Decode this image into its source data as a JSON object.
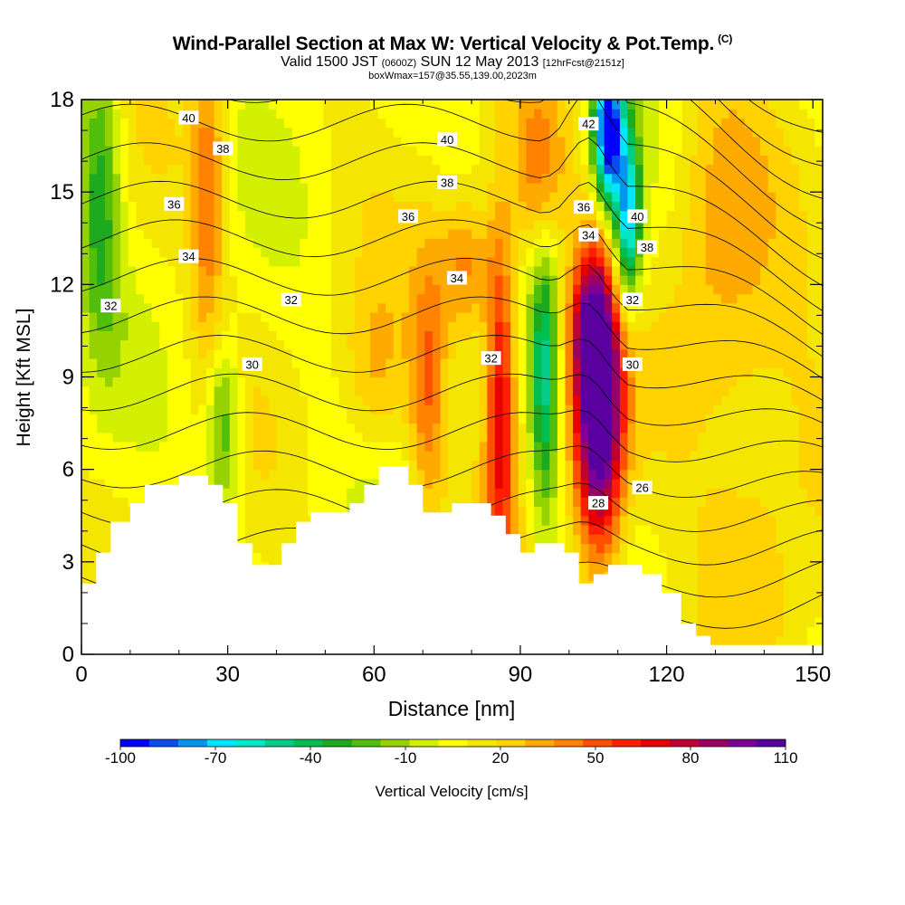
{
  "header": {
    "title": "Wind-Parallel Section at Max W: Vertical Velocity & Pot.Temp.",
    "copyright": "(C)",
    "valid_prefix": "Valid 1500 JST",
    "valid_utc": "(0600Z)",
    "valid_date": "SUN 12 May 2013",
    "forecast": "[12hrFcst@2151z]",
    "box": "boxWmax=157@35.55,139.00,2023m"
  },
  "chart_data": {
    "type": "heatmap",
    "xlabel": "Distance [nm]",
    "ylabel": "Height [Kft MSL]",
    "xlim": [
      0,
      152
    ],
    "ylim": [
      0,
      18
    ],
    "x_ticks": [
      0,
      30,
      60,
      90,
      120,
      150
    ],
    "y_ticks": [
      0,
      3,
      6,
      9,
      12,
      15,
      18
    ],
    "colorbar": {
      "label": "Vertical Velocity [cm/s]",
      "tick_labels": [
        -100,
        -70,
        -40,
        -10,
        20,
        50,
        80,
        110
      ],
      "colors": [
        "#0000ff",
        "#0a4cf0",
        "#0096f0",
        "#00e6ff",
        "#00e6c8",
        "#00cd8c",
        "#00be50",
        "#1eaa1e",
        "#50be0a",
        "#96d200",
        "#d2f000",
        "#ffff00",
        "#f5e600",
        "#ffd200",
        "#ffaa00",
        "#ff8200",
        "#ff5000",
        "#ff1e00",
        "#e60000",
        "#be0032",
        "#9b0064",
        "#7d0096",
        "#5a00a0"
      ]
    },
    "theta_contour_labels": [
      {
        "value": 40,
        "x": 22,
        "y": 17.4
      },
      {
        "value": 38,
        "x": 29,
        "y": 16.4
      },
      {
        "value": 36,
        "x": 19,
        "y": 14.6
      },
      {
        "value": 34,
        "x": 22,
        "y": 12.9
      },
      {
        "value": 32,
        "x": 6,
        "y": 11.3
      },
      {
        "value": 32,
        "x": 43,
        "y": 11.5
      },
      {
        "value": 30,
        "x": 35,
        "y": 9.4
      },
      {
        "value": 40,
        "x": 75,
        "y": 16.7
      },
      {
        "value": 38,
        "x": 75,
        "y": 15.3
      },
      {
        "value": 36,
        "x": 67,
        "y": 14.2
      },
      {
        "value": 34,
        "x": 77,
        "y": 12.2
      },
      {
        "value": 32,
        "x": 84,
        "y": 9.6
      },
      {
        "value": 42,
        "x": 104,
        "y": 17.2
      },
      {
        "value": 36,
        "x": 103,
        "y": 14.5
      },
      {
        "value": 34,
        "x": 104,
        "y": 13.6
      },
      {
        "value": 40,
        "x": 114,
        "y": 14.2
      },
      {
        "value": 38,
        "x": 116,
        "y": 13.2
      },
      {
        "value": 32,
        "x": 113,
        "y": 11.5
      },
      {
        "value": 30,
        "x": 113,
        "y": 9.4
      },
      {
        "value": 28,
        "x": 106,
        "y": 4.9
      },
      {
        "value": 26,
        "x": 115,
        "y": 5.4
      }
    ],
    "terrain": [
      [
        0,
        2.3
      ],
      [
        3,
        3.3
      ],
      [
        6,
        4.3
      ],
      [
        10,
        4.9
      ],
      [
        13,
        5.5
      ],
      [
        20,
        5.8
      ],
      [
        26,
        5.5
      ],
      [
        29,
        4.9
      ],
      [
        32,
        3.6
      ],
      [
        35,
        2.9
      ],
      [
        41,
        3.6
      ],
      [
        44,
        4.3
      ],
      [
        47,
        4.6
      ],
      [
        55,
        4.9
      ],
      [
        58,
        5.5
      ],
      [
        61,
        6.1
      ],
      [
        67,
        5.5
      ],
      [
        70,
        4.6
      ],
      [
        73,
        4.6
      ],
      [
        76,
        4.9
      ],
      [
        84,
        4.5
      ],
      [
        87,
        3.9
      ],
      [
        90,
        3.3
      ],
      [
        93,
        3.6
      ],
      [
        96,
        3.6
      ],
      [
        99,
        3.3
      ],
      [
        102,
        2.3
      ],
      [
        105,
        2.6
      ],
      [
        108,
        2.9
      ],
      [
        112,
        2.9
      ],
      [
        115,
        2.6
      ],
      [
        119,
        2.0
      ],
      [
        123,
        1.0
      ],
      [
        126,
        0.6
      ],
      [
        129,
        0.3
      ],
      [
        132,
        0.3
      ],
      [
        135,
        0.3
      ],
      [
        152,
        0.3
      ]
    ],
    "velocity_features": [
      {
        "x": 106,
        "y": 8.0,
        "sx": 3.5,
        "sy": 3.4,
        "w": 120
      },
      {
        "x": 104,
        "y": 10.5,
        "sx": 3.0,
        "sy": 1.6,
        "w": 40
      },
      {
        "x": 86,
        "y": 8.5,
        "sx": 2.2,
        "sy": 4.0,
        "w": 65
      },
      {
        "x": 79,
        "y": 12.5,
        "sx": 4.0,
        "sy": 1.6,
        "w": 35
      },
      {
        "x": 94,
        "y": 15.5,
        "sx": 3.5,
        "sy": 2.0,
        "w": 35
      },
      {
        "x": 71,
        "y": 8.5,
        "sx": 2.5,
        "sy": 3.0,
        "w": 35
      },
      {
        "x": 95,
        "y": 9.0,
        "sx": 2.0,
        "sy": 3.5,
        "w": -50
      },
      {
        "x": 108,
        "y": 17.0,
        "sx": 2.2,
        "sy": 1.8,
        "w": -110
      },
      {
        "x": 112,
        "y": 14.0,
        "sx": 2.0,
        "sy": 2.0,
        "w": -80
      },
      {
        "x": 29,
        "y": 7.5,
        "sx": 2.5,
        "sy": 2.0,
        "w": -40
      },
      {
        "x": 4,
        "y": 15.0,
        "sx": 3.0,
        "sy": 3.5,
        "w": -40
      },
      {
        "x": 26,
        "y": 15.0,
        "sx": 2.5,
        "sy": 4.0,
        "w": 35
      },
      {
        "x": 140,
        "y": 6.0,
        "sx": 10.0,
        "sy": 4.0,
        "w": 20
      },
      {
        "x": 130,
        "y": 14.0,
        "sx": 7.0,
        "sy": 4.0,
        "w": 22
      },
      {
        "x": 60,
        "y": 9.0,
        "sx": 5.0,
        "sy": 2.0,
        "w": 22
      }
    ]
  }
}
